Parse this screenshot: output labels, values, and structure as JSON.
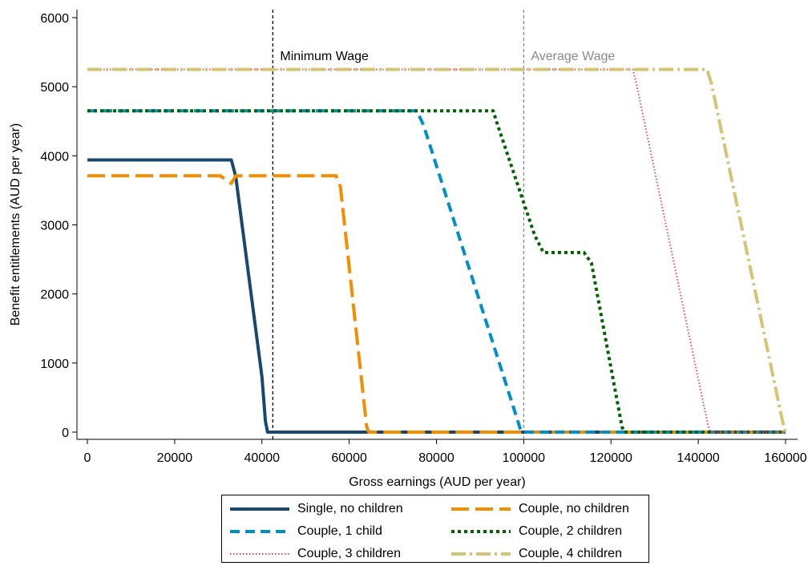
{
  "chart_data": {
    "type": "line",
    "title": "",
    "xlabel": "Gross earnings (AUD per year)",
    "ylabel": "Benefit entitlements (AUD per year)",
    "xlim": [
      0,
      160000
    ],
    "ylim": [
      0,
      6000
    ],
    "xticks": [
      0,
      20000,
      40000,
      60000,
      80000,
      100000,
      120000,
      140000,
      160000
    ],
    "yticks": [
      0,
      1000,
      2000,
      3000,
      4000,
      5000,
      6000
    ],
    "grid": false,
    "legend_position": "bottom",
    "reference_lines": [
      {
        "label": "Minimum Wage",
        "x": 42500,
        "color": "#000000"
      },
      {
        "label": "Average Wage",
        "x": 100000,
        "color": "#8a8a8a"
      }
    ],
    "series": [
      {
        "name": "Single, no children",
        "color": "#1a476f",
        "style": "solid",
        "x": [
          0,
          33000,
          34000,
          40000,
          40800,
          41300,
          160000
        ],
        "y": [
          3940,
          3940,
          3700,
          800,
          160,
          0,
          0
        ]
      },
      {
        "name": "Couple, no children",
        "color": "#f28e00",
        "style": "longdash",
        "x": [
          0,
          30500,
          33000,
          34000,
          57000,
          58000,
          64000,
          64500,
          160000
        ],
        "y": [
          3710,
          3710,
          3600,
          3710,
          3710,
          3550,
          80,
          0,
          0
        ]
      },
      {
        "name": "Couple, 1 child",
        "color": "#008fc7",
        "style": "dash",
        "x": [
          0,
          75500,
          77000,
          99200,
          99600,
          160000
        ],
        "y": [
          4650,
          4650,
          4450,
          50,
          0,
          0
        ]
      },
      {
        "name": "Couple, 2 children",
        "color": "#006400",
        "style": "dot",
        "x": [
          0,
          93000,
          94000,
          102500,
          104500,
          113800,
          115500,
          122500,
          123000,
          160000
        ],
        "y": [
          4650,
          4650,
          4450,
          2850,
          2600,
          2600,
          2450,
          80,
          0,
          0
        ]
      },
      {
        "name": "Couple, 3 children",
        "color": "#e0457b",
        "style": "dot-fine",
        "x": [
          0,
          125000,
          125800,
          142300,
          142800,
          160000
        ],
        "y": [
          5250,
          5250,
          5050,
          80,
          0,
          0
        ]
      },
      {
        "name": "Couple, 4 children",
        "color": "#d6c474",
        "style": "dashdot",
        "x": [
          0,
          142000,
          143000,
          159500,
          160000
        ],
        "y": [
          5250,
          5250,
          5050,
          100,
          0
        ]
      }
    ]
  }
}
